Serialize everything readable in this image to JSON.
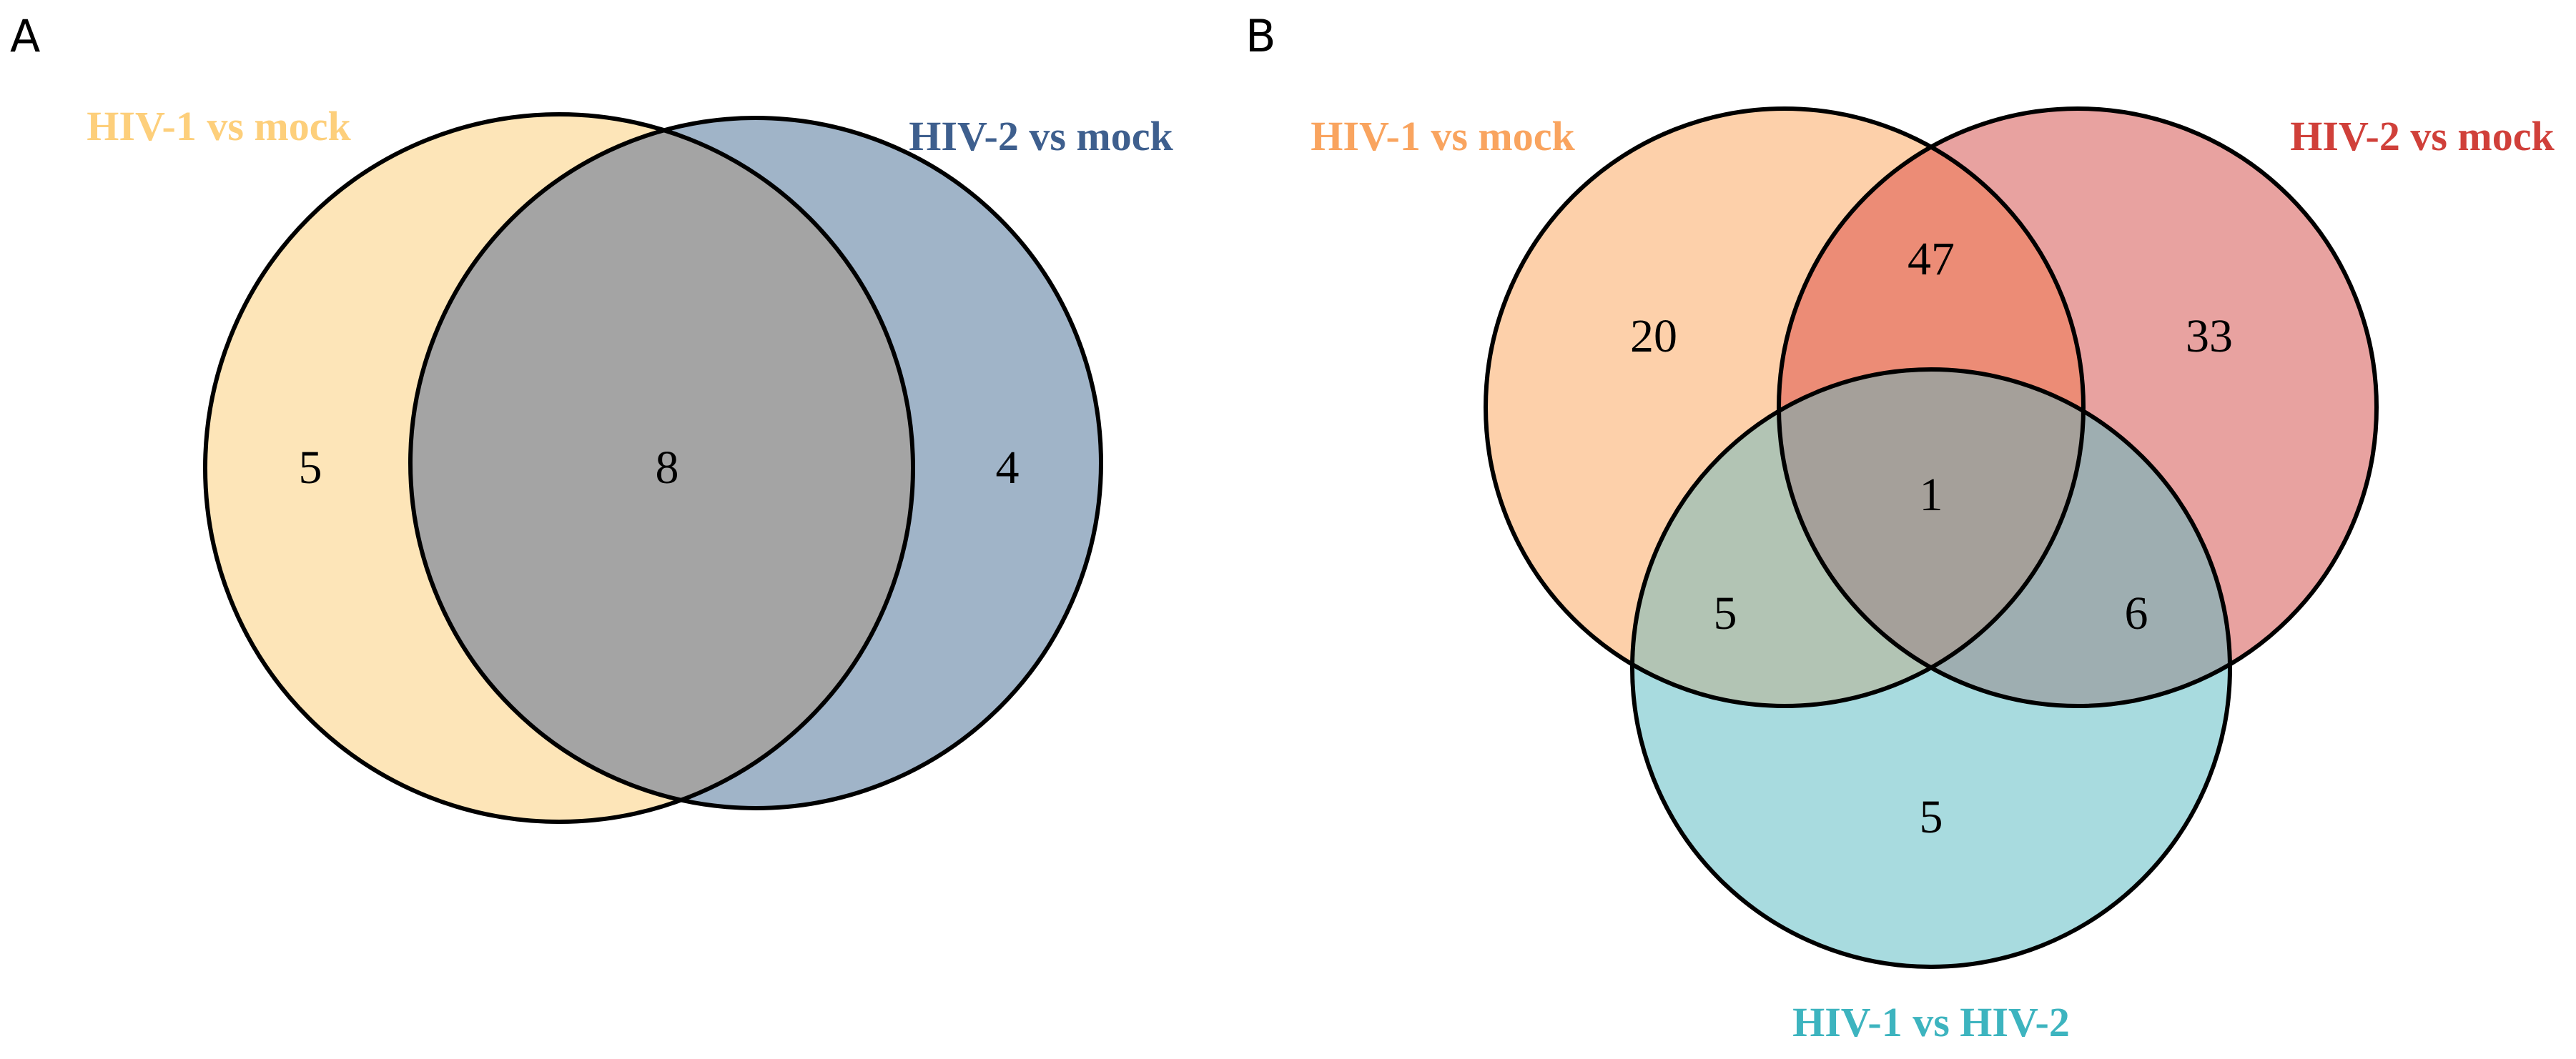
{
  "panels": [
    {
      "letter": "A",
      "sets": [
        {
          "label": "HIV-1 vs mock",
          "color": "#fde5b8",
          "label_color": "#fdcf7b"
        },
        {
          "label": "HIV-2 vs mock",
          "color": "#a0b4c8",
          "label_color": "#3e5f8e"
        }
      ],
      "overlap_color": "#a4a4a4",
      "regions": {
        "hiv1_only": "5",
        "shared": "8",
        "hiv2_only": "4"
      }
    },
    {
      "letter": "B",
      "sets": [
        {
          "label": "HIV-1 vs mock",
          "color": "#fdd0aa",
          "label_color": "#f9a45f"
        },
        {
          "label": "HIV-2 vs mock",
          "color": "#e8a2a0",
          "label_color": "#d0403a"
        },
        {
          "label": "HIV-1 vs HIV-2",
          "color": "#a8dbdf",
          "label_color": "#3db4bf"
        }
      ],
      "region_colors": {
        "hiv1_hiv2_mock": "#ec8c76",
        "hiv1mock_hiv1hiv2": "#b2c4b4",
        "hiv2mock_hiv1hiv2": "#9eaeb1",
        "all_three": "#a5a09a"
      },
      "regions": {
        "hiv1_mock_only": "20",
        "hiv1_and_hiv2_mock": "47",
        "hiv2_mock_only": "33",
        "all_three": "1",
        "hiv1_mock_and_hiv1_vs_hiv2": "5",
        "hiv2_mock_and_hiv1_vs_hiv2": "6",
        "hiv1_vs_hiv2_only": "5"
      }
    }
  ]
}
